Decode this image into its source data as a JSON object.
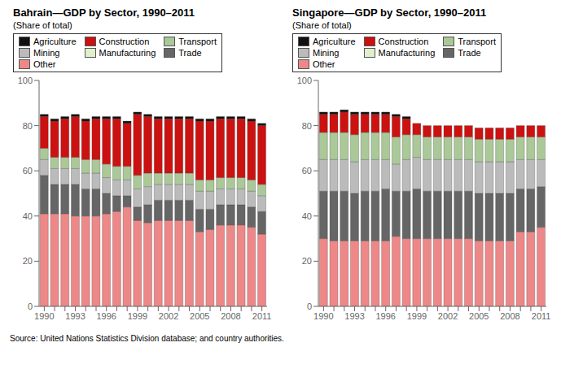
{
  "chart_data": [
    {
      "type": "bar",
      "title": "Bahrain—GDP by Sector, 1990–2011",
      "subtitle": "(Share of total)",
      "categories": [
        "1990",
        null,
        null,
        "1993",
        null,
        null,
        "1996",
        null,
        null,
        "1999",
        null,
        null,
        "2002",
        null,
        null,
        "2005",
        null,
        null,
        "2008",
        null,
        null,
        "2011"
      ],
      "series": [
        {
          "name": "Other",
          "color": "#ee8888",
          "values": [
            41,
            41,
            41,
            40,
            40,
            40,
            41,
            42,
            44,
            38,
            37,
            38,
            38,
            38,
            38,
            33,
            34,
            36,
            36,
            36,
            35,
            32
          ]
        },
        {
          "name": "Trade",
          "color": "#666666",
          "values": [
            17,
            13,
            13,
            14,
            12,
            12,
            9,
            7,
            5,
            6,
            8,
            9,
            9,
            9,
            9,
            10,
            9,
            9,
            9,
            9,
            9,
            10
          ]
        },
        {
          "name": "Manufacturing",
          "color": "#e0f0cc",
          "values": [
            0,
            0,
            0,
            0,
            0,
            0,
            0,
            0,
            0,
            0,
            0,
            0,
            0,
            0,
            0,
            0,
            0,
            0,
            0,
            0,
            0,
            0
          ]
        },
        {
          "name": "Mining",
          "color": "#bbbbbb",
          "values": [
            7,
            7,
            7,
            7,
            7,
            7,
            7,
            7,
            7,
            8,
            8,
            7,
            7,
            7,
            7,
            8,
            8,
            7,
            7,
            7,
            7,
            7
          ]
        },
        {
          "name": "Transport",
          "color": "#aac898",
          "values": [
            5,
            5,
            5,
            5,
            6,
            6,
            6,
            6,
            6,
            6,
            6,
            5,
            5,
            5,
            5,
            5,
            5,
            5,
            5,
            5,
            5,
            5
          ]
        },
        {
          "name": "Construction",
          "color": "#cc1111",
          "values": [
            14,
            16,
            17,
            18,
            17,
            18,
            20,
            21,
            19,
            27,
            25,
            24,
            24,
            24,
            24,
            26,
            26,
            26,
            26,
            26,
            26,
            26
          ]
        },
        {
          "name": "Agriculture",
          "color": "#111111",
          "values": [
            1,
            1,
            1,
            1,
            1,
            1,
            1,
            1,
            1,
            1,
            1,
            1,
            1,
            1,
            1,
            1,
            1,
            1,
            1,
            1,
            1,
            1
          ]
        }
      ],
      "ylim": [
        0,
        100
      ],
      "yticks": [
        0,
        20,
        40,
        60,
        80,
        100
      ],
      "stacked": true,
      "grid": false,
      "legend": "upper left"
    },
    {
      "type": "bar",
      "title": "Singapore—GDP by Sector, 1990–2011",
      "subtitle": "(Share of total)",
      "categories": [
        "1990",
        null,
        null,
        "1993",
        null,
        null,
        "1996",
        null,
        null,
        "1999",
        null,
        null,
        "2002",
        null,
        null,
        "2005",
        null,
        null,
        "2008",
        null,
        null,
        "2011"
      ],
      "series": [
        {
          "name": "Other",
          "color": "#ee8888",
          "values": [
            30,
            29,
            29,
            29,
            29,
            29,
            29,
            31,
            30,
            30,
            30,
            30,
            30,
            30,
            30,
            29,
            29,
            29,
            29,
            33,
            33,
            35
          ]
        },
        {
          "name": "Trade",
          "color": "#666666",
          "values": [
            21,
            22,
            22,
            21,
            22,
            22,
            23,
            20,
            21,
            22,
            21,
            21,
            21,
            21,
            21,
            21,
            21,
            21,
            21,
            19,
            19,
            18
          ]
        },
        {
          "name": "Manufacturing",
          "color": "#e0f0cc",
          "values": [
            0,
            0,
            0,
            0,
            0,
            0,
            0,
            0,
            0,
            0,
            0,
            0,
            0,
            0,
            0,
            0,
            0,
            0,
            0,
            0,
            0,
            0
          ]
        },
        {
          "name": "Mining",
          "color": "#bbbbbb",
          "values": [
            14,
            14,
            14,
            14,
            14,
            14,
            13,
            12,
            14,
            14,
            14,
            14,
            14,
            14,
            14,
            14,
            14,
            14,
            14,
            13,
            13,
            12
          ]
        },
        {
          "name": "Transport",
          "color": "#aac898",
          "values": [
            12,
            12,
            12,
            12,
            12,
            12,
            12,
            12,
            11,
            10,
            10,
            10,
            10,
            10,
            10,
            10,
            10,
            10,
            10,
            10,
            10,
            10
          ]
        },
        {
          "name": "Construction",
          "color": "#cc1111",
          "values": [
            8,
            8,
            9,
            9,
            8,
            8,
            8,
            9,
            7,
            5,
            5,
            5,
            5,
            5,
            5,
            5,
            5,
            5,
            5,
            5,
            5,
            5
          ]
        },
        {
          "name": "Agriculture",
          "color": "#111111",
          "values": [
            1,
            1,
            1,
            1,
            1,
            1,
            1,
            1,
            1,
            0,
            0,
            0,
            0,
            0,
            0,
            0,
            0,
            0,
            0,
            0,
            0,
            0
          ]
        }
      ],
      "ylim": [
        0,
        100
      ],
      "yticks": [
        0,
        20,
        40,
        60,
        80,
        100
      ],
      "stacked": true,
      "grid": false,
      "legend": "upper left"
    }
  ],
  "source": "Source: United Nations Statistics Division database; and country authorities."
}
